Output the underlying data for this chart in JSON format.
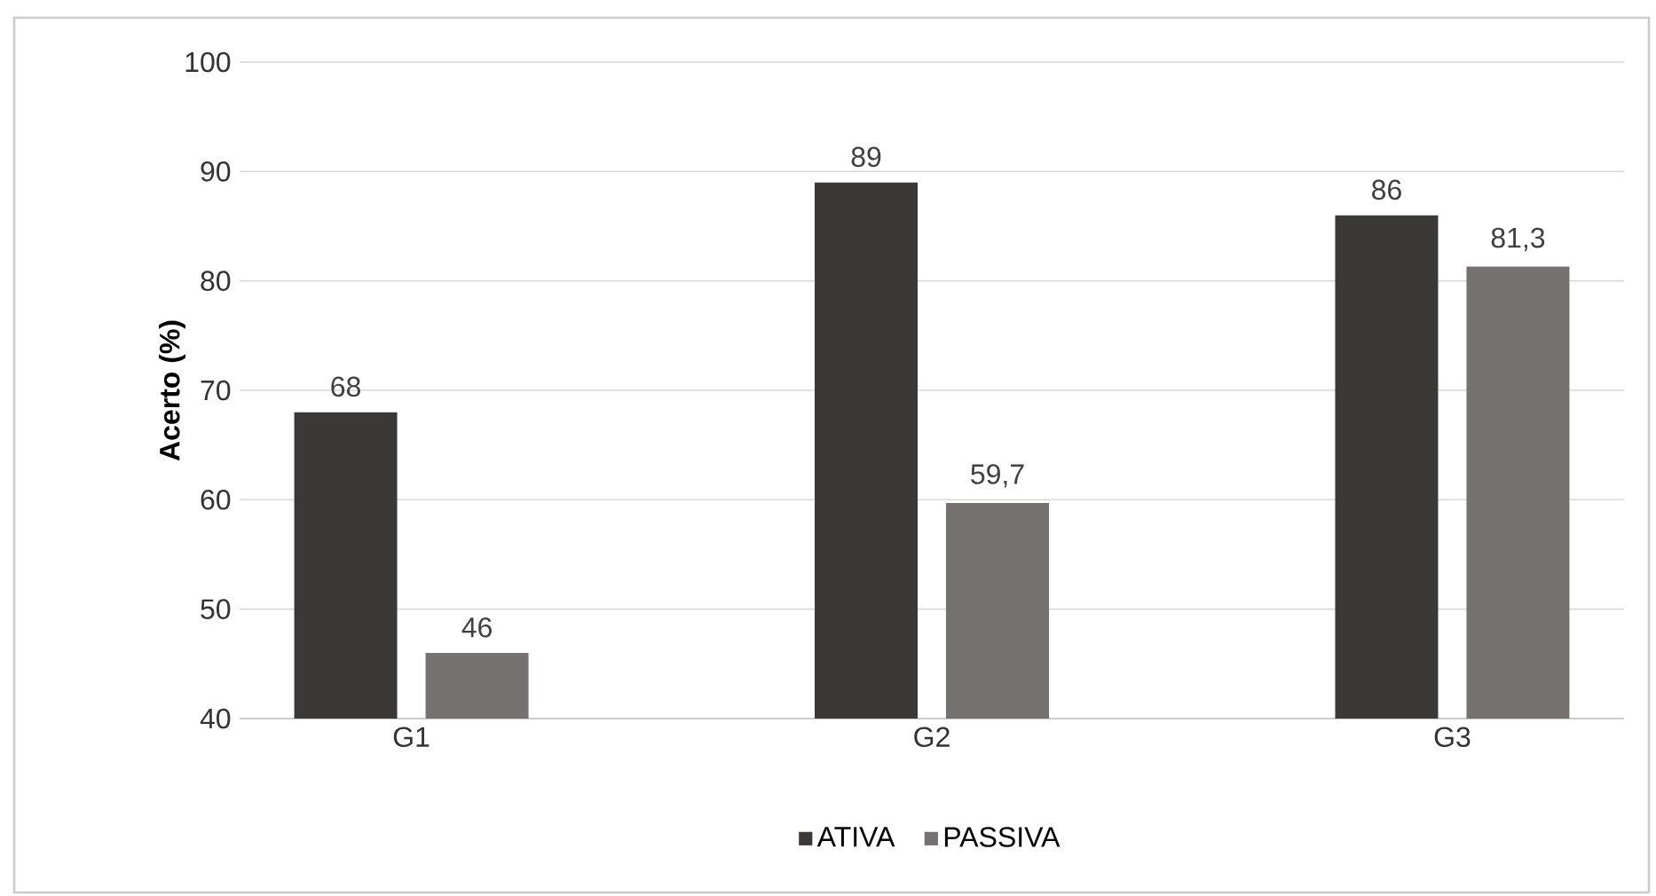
{
  "chart_data": {
    "type": "bar",
    "ylabel": "Acerto (%)",
    "categories": [
      "G1",
      "G2",
      "G3"
    ],
    "series": [
      {
        "name": "ATIVA",
        "color": "#3b3937",
        "values": [
          68,
          89,
          86
        ],
        "value_labels": [
          "68",
          "89",
          "86"
        ]
      },
      {
        "name": "PASSIVA",
        "color": "#767171",
        "values": [
          46,
          59.7,
          81.3
        ],
        "value_labels": [
          "46",
          "59,7",
          "81,3"
        ]
      }
    ],
    "ylim": [
      40,
      100
    ],
    "yticks": [
      40,
      50,
      60,
      70,
      80,
      90,
      100
    ],
    "grid": "y",
    "legend": "bottom"
  }
}
